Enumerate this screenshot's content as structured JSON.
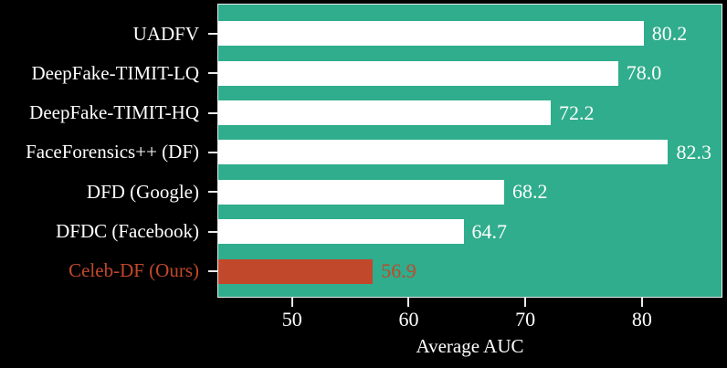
{
  "chart_data": {
    "type": "bar",
    "orientation": "horizontal",
    "title": "",
    "xlabel": "Average AUC",
    "ylabel": "",
    "categories": [
      "UADFV",
      "DeepFake-TIMIT-LQ",
      "DeepFake-TIMIT-HQ",
      "FaceForensics++ (DF)",
      "DFD (Google)",
      "DFDC (Facebook)",
      "Celeb-DF (Ours)"
    ],
    "values": [
      80.2,
      78.0,
      72.2,
      82.3,
      68.2,
      64.7,
      56.9
    ],
    "value_labels": [
      "80.2",
      "78.0",
      "72.2",
      "82.3",
      "68.2",
      "64.7",
      "56.9"
    ],
    "highlight_index": 6,
    "xlim": [
      43.6,
      86.9
    ],
    "xticks": [
      50,
      60,
      70,
      80
    ],
    "grid": false,
    "legend": "none",
    "colors": {
      "background": "#000000",
      "plot_background": "#2FAD8C",
      "bar": "#FFFFFF",
      "highlight_bar": "#C2482B",
      "text": "#FFFFFF",
      "highlight_text": "#C2482B",
      "spine": "#ECECEC"
    }
  }
}
